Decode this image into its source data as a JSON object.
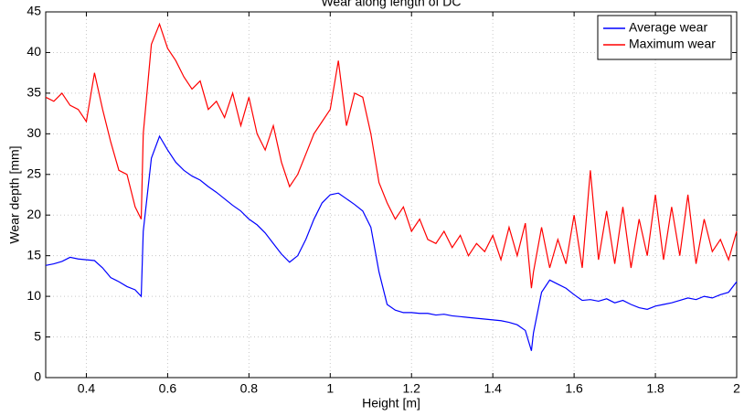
{
  "chart_data": {
    "type": "line",
    "title": "Wear along length of DC",
    "x_label": "Height [m]",
    "y_label": "Wear depth [mm]",
    "x": [
      0.3,
      0.32,
      0.34,
      0.36,
      0.38,
      0.4,
      0.42,
      0.44,
      0.46,
      0.48,
      0.5,
      0.52,
      0.535,
      0.54,
      0.56,
      0.58,
      0.6,
      0.62,
      0.64,
      0.66,
      0.68,
      0.7,
      0.72,
      0.74,
      0.76,
      0.78,
      0.8,
      0.82,
      0.84,
      0.86,
      0.88,
      0.9,
      0.92,
      0.94,
      0.96,
      0.98,
      1.0,
      1.02,
      1.04,
      1.06,
      1.08,
      1.1,
      1.12,
      1.14,
      1.16,
      1.18,
      1.2,
      1.22,
      1.24,
      1.26,
      1.28,
      1.3,
      1.32,
      1.34,
      1.36,
      1.38,
      1.4,
      1.42,
      1.44,
      1.46,
      1.48,
      1.495,
      1.5,
      1.52,
      1.54,
      1.56,
      1.58,
      1.6,
      1.62,
      1.64,
      1.66,
      1.68,
      1.7,
      1.72,
      1.74,
      1.76,
      1.78,
      1.8,
      1.82,
      1.84,
      1.86,
      1.88,
      1.9,
      1.92,
      1.94,
      1.96,
      1.98,
      2.0
    ],
    "series": [
      {
        "name": "Average wear",
        "color": "#0000ff",
        "values": [
          13.8,
          14.0,
          14.3,
          14.8,
          14.6,
          14.5,
          14.4,
          13.5,
          12.3,
          11.8,
          11.2,
          10.8,
          10.0,
          18,
          27,
          29.7,
          28.0,
          26.5,
          25.5,
          24.8,
          24.3,
          23.5,
          22.8,
          22.0,
          21.2,
          20.5,
          19.5,
          18.8,
          17.8,
          16.5,
          15.2,
          14.2,
          15.0,
          17.0,
          19.5,
          21.5,
          22.5,
          22.7,
          22.0,
          21.3,
          20.5,
          18.5,
          13.0,
          9.0,
          8.3,
          8.0,
          8.0,
          7.9,
          7.9,
          7.7,
          7.8,
          7.6,
          7.5,
          7.4,
          7.3,
          7.2,
          7.1,
          7.0,
          6.8,
          6.5,
          5.8,
          3.3,
          5.5,
          10.5,
          12.0,
          11.5,
          11.0,
          10.2,
          9.5,
          9.6,
          9.4,
          9.7,
          9.2,
          9.5,
          9.0,
          8.6,
          8.4,
          8.8,
          9.0,
          9.2,
          9.5,
          9.8,
          9.6,
          10.0,
          9.8,
          10.2,
          10.5,
          11.8
        ]
      },
      {
        "name": "Maximum wear",
        "color": "#ff0000",
        "values": [
          34.5,
          34.0,
          35.0,
          33.5,
          33.0,
          31.5,
          37.5,
          33.0,
          29.0,
          25.5,
          25.0,
          21.0,
          19.5,
          30,
          41,
          43.5,
          40.5,
          39.0,
          37.0,
          35.5,
          36.5,
          33.0,
          34.0,
          32.0,
          35.0,
          31.0,
          34.5,
          30.0,
          28.0,
          31.0,
          26.5,
          23.5,
          25.0,
          27.5,
          30.0,
          31.5,
          33.0,
          39.0,
          31.0,
          35.0,
          34.5,
          30.0,
          24.0,
          21.5,
          19.5,
          21.0,
          18.0,
          19.5,
          17.0,
          16.5,
          18.0,
          16.0,
          17.5,
          15.0,
          16.5,
          15.5,
          17.5,
          14.5,
          18.5,
          15.0,
          19.0,
          11.0,
          13.0,
          18.5,
          13.5,
          17.0,
          14.0,
          20.0,
          13.5,
          25.5,
          14.5,
          20.5,
          14.0,
          21.0,
          13.5,
          19.5,
          15.0,
          22.5,
          14.5,
          21.0,
          15.0,
          22.5,
          14.0,
          19.5,
          15.5,
          17.0,
          14.5,
          18.0
        ]
      }
    ],
    "xlim": [
      0.3,
      2
    ],
    "xticks": [
      0.4,
      0.6,
      0.8,
      1,
      1.2,
      1.4,
      1.6,
      1.8,
      2
    ],
    "ylim": [
      0,
      45
    ],
    "yticks": [
      0,
      5,
      10,
      15,
      20,
      25,
      30,
      35,
      40,
      45
    ],
    "grid": true,
    "legend": "upper right"
  }
}
